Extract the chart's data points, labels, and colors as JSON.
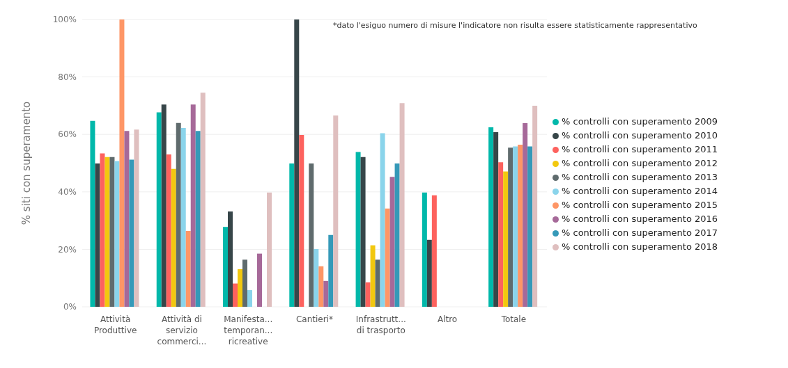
{
  "chart_data": {
    "type": "bar",
    "ylabel": "% siti con superamento",
    "annotations": [
      "*dato l'esiguo numero di misure l'indicatore non risulta essere statisticamente rappresentativo"
    ],
    "categories": [
      "Attività Produttive",
      "Attività di servizio commerci...",
      "Manifesta... temporan... ricreative",
      "Cantieri*",
      "Infrastrutt... di trasporto",
      "Altro",
      "Totale"
    ],
    "series": [
      {
        "name": "% controlli con superamento 2009",
        "color": "#01b8aa",
        "values": [
          64.7,
          67.7,
          27.8,
          49.9,
          53.9,
          39.8,
          62.5
        ]
      },
      {
        "name": "% controlli con superamento 2010",
        "color": "#374649",
        "values": [
          49.9,
          70.4,
          33.2,
          100,
          52.1,
          23.3,
          60.8
        ]
      },
      {
        "name": "% controlli con superamento 2011",
        "color": "#fd625e",
        "values": [
          53.4,
          53,
          8.1,
          59.8,
          8.5,
          38.8,
          50.3
        ]
      },
      {
        "name": "% controlli con superamento 2012",
        "color": "#f2c80f",
        "values": [
          52.1,
          48,
          13.1,
          null,
          21.4,
          null,
          47.1
        ]
      },
      {
        "name": "% controlli con superamento 2013",
        "color": "#5f6b6d",
        "values": [
          52.1,
          64,
          16.4,
          49.9,
          16.4,
          null,
          55.4
        ]
      },
      {
        "name": "% controlli con superamento 2014",
        "color": "#8ad4eb",
        "values": [
          50.7,
          62.2,
          5.8,
          20.1,
          60.4,
          null,
          55.8
        ]
      },
      {
        "name": "% controlli con superamento 2015",
        "color": "#fe9666",
        "values": [
          100,
          26.4,
          null,
          14.1,
          34.2,
          null,
          56.4
        ]
      },
      {
        "name": "% controlli con superamento 2016",
        "color": "#a66999",
        "values": [
          61.2,
          70.4,
          18.5,
          9,
          45.2,
          null,
          63.9
        ]
      },
      {
        "name": "% controlli con superamento 2017",
        "color": "#3599b8",
        "values": [
          51.2,
          61.2,
          null,
          25,
          49.9,
          null,
          55.8
        ]
      },
      {
        "name": "% controlli con superamento 2018",
        "color": "#dfbfbf",
        "values": [
          61.7,
          74.5,
          39.8,
          66.6,
          70.9,
          null,
          70
        ]
      }
    ],
    "ylim": [
      0,
      100
    ],
    "yticks": [
      {
        "value": 0,
        "label": "0%"
      },
      {
        "value": 20,
        "label": "20%"
      },
      {
        "value": 40,
        "label": "40%"
      },
      {
        "value": 60,
        "label": "60%"
      },
      {
        "value": 80,
        "label": "80%"
      },
      {
        "value": 100,
        "label": "100%"
      }
    ],
    "grid": "y",
    "legend": "right"
  }
}
